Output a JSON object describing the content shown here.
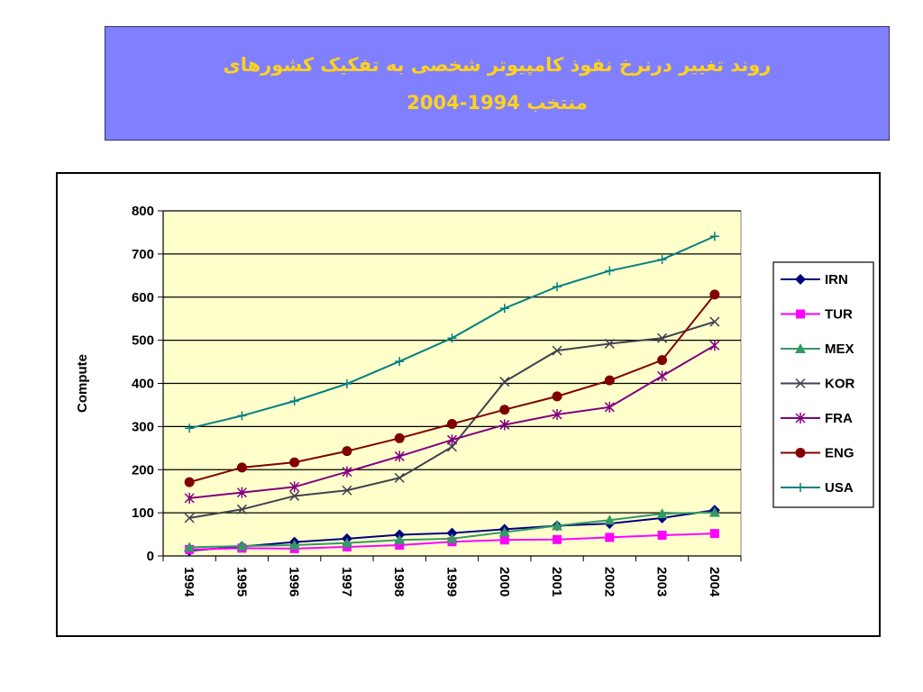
{
  "slide": {
    "title_line1": "روند تغییر درنرخ نفوذ کامپیوتر شخصی به تفکیک کشورهای",
    "title_line2": "منتخب 1994-2004",
    "title_color": "#ffd21f",
    "title_bg": "#8080ff"
  },
  "chart_data": {
    "type": "line",
    "title": "",
    "xlabel": "",
    "ylabel": "Compute",
    "ylim": [
      0,
      800
    ],
    "yticks": [
      0,
      100,
      200,
      300,
      400,
      500,
      600,
      700,
      800
    ],
    "categories": [
      "1994",
      "1995",
      "1996",
      "1997",
      "1998",
      "1999",
      "2000",
      "2001",
      "2002",
      "2003",
      "2004"
    ],
    "grid": "horizontal",
    "plot_bg": "#ffffcc",
    "legend_position": "right",
    "series": [
      {
        "name": "IRN",
        "color": "#000080",
        "marker": "diamond",
        "values": [
          12,
          22,
          32,
          40,
          49,
          53,
          62,
          70,
          75,
          88,
          106
        ]
      },
      {
        "name": "TUR",
        "color": "#ff00ff",
        "marker": "square",
        "values": [
          15,
          18,
          17,
          21,
          25,
          33,
          37,
          38,
          43,
          48,
          52
        ]
      },
      {
        "name": "MEX",
        "color": "#339966",
        "marker": "triangle",
        "values": [
          20,
          23,
          25,
          30,
          37,
          40,
          55,
          70,
          83,
          98,
          101
        ]
      },
      {
        "name": "KOR",
        "color": "#404050",
        "marker": "x",
        "values": [
          88,
          108,
          139,
          152,
          181,
          253,
          404,
          476,
          492,
          505,
          543
        ]
      },
      {
        "name": "FRA",
        "color": "#800080",
        "marker": "star",
        "values": [
          134,
          147,
          160,
          195,
          231,
          269,
          304,
          328,
          345,
          417,
          488
        ]
      },
      {
        "name": "ENG",
        "color": "#800000",
        "marker": "circle",
        "values": [
          171,
          205,
          217,
          243,
          273,
          306,
          339,
          370,
          407,
          454,
          606
        ]
      },
      {
        "name": "USA",
        "color": "#008080",
        "marker": "plus",
        "values": [
          296,
          325,
          359,
          399,
          451,
          505,
          574,
          624,
          661,
          687,
          741
        ]
      }
    ]
  }
}
